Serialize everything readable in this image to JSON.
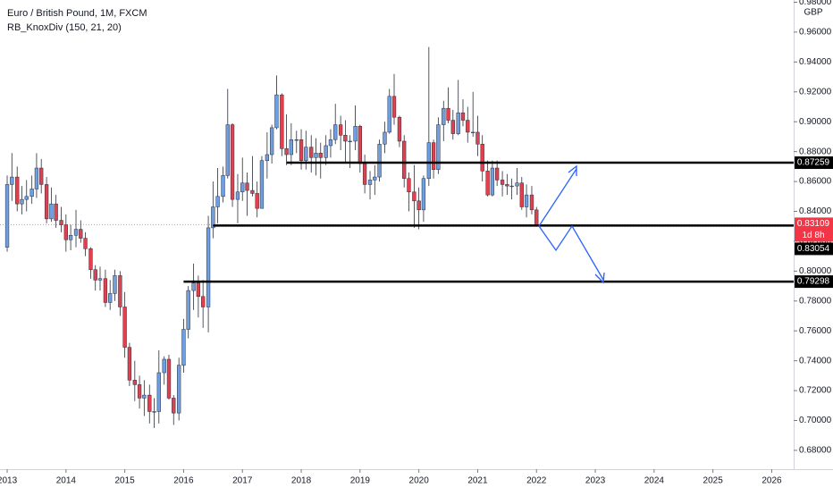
{
  "chart_data": {
    "type": "candlestick",
    "title": "Euro / British Pound, 1M, FXCM",
    "subtitle": "RB_KnoxDiv (150, 21, 20)",
    "currency": "GBP",
    "up_color": "#6f9fe0",
    "down_color": "#e0404f",
    "x": [
      2013,
      2013.08,
      2013.17,
      2013.25,
      2013.33,
      2013.42,
      2013.5,
      2013.58,
      2013.67,
      2013.75,
      2013.83,
      2013.92,
      2014,
      2014.08,
      2014.17,
      2014.25,
      2014.33,
      2014.42,
      2014.5,
      2014.58,
      2014.67,
      2014.75,
      2014.83,
      2014.92,
      2015,
      2015.08,
      2015.17,
      2015.25,
      2015.33,
      2015.42,
      2015.5,
      2015.58,
      2015.67,
      2015.75,
      2015.83,
      2015.92,
      2016,
      2016.08,
      2016.17,
      2016.25,
      2016.33,
      2016.42,
      2016.5,
      2016.58,
      2016.67,
      2016.75,
      2016.83,
      2016.92,
      2017,
      2017.08,
      2017.17,
      2017.25,
      2017.33,
      2017.42,
      2017.5,
      2017.58,
      2017.67,
      2017.75,
      2017.83,
      2017.92,
      2018,
      2018.08,
      2018.17,
      2018.25,
      2018.33,
      2018.42,
      2018.5,
      2018.58,
      2018.67,
      2018.75,
      2018.83,
      2018.92,
      2019,
      2019.08,
      2019.17,
      2019.25,
      2019.33,
      2019.42,
      2019.5,
      2019.58,
      2019.67,
      2019.75,
      2019.83,
      2019.92,
      2020,
      2020.08,
      2020.17,
      2020.25,
      2020.33,
      2020.42,
      2020.5,
      2020.58,
      2020.67,
      2020.75,
      2020.83,
      2020.92,
      2021,
      2021.08,
      2021.17,
      2021.25,
      2021.33,
      2021.42,
      2021.5,
      2021.58,
      2021.67,
      2021.75,
      2021.83,
      2021.92,
      2022
    ],
    "open": [
      0.816,
      0.858,
      0.863,
      0.845,
      0.848,
      0.85,
      0.855,
      0.869,
      0.858,
      0.835,
      0.845,
      0.834,
      0.831,
      0.821,
      0.824,
      0.828,
      0.822,
      0.815,
      0.801,
      0.794,
      0.795,
      0.779,
      0.785,
      0.797,
      0.776,
      0.749,
      0.727,
      0.724,
      0.715,
      0.717,
      0.706,
      0.706,
      0.732,
      0.741,
      0.715,
      0.705,
      0.737,
      0.761,
      0.787,
      0.792,
      0.783,
      0.776,
      0.829,
      0.843,
      0.85,
      0.864,
      0.898,
      0.848,
      0.853,
      0.859,
      0.854,
      0.852,
      0.842,
      0.874,
      0.878,
      0.896,
      0.918,
      0.882,
      0.878,
      0.888,
      0.888,
      0.874,
      0.883,
      0.876,
      0.879,
      0.876,
      0.884,
      0.888,
      0.898,
      0.891,
      0.887,
      0.887,
      0.897,
      0.872,
      0.858,
      0.861,
      0.863,
      0.885,
      0.893,
      0.917,
      0.903,
      0.887,
      0.862,
      0.853,
      0.847,
      0.841,
      0.862,
      0.886,
      0.868,
      0.898,
      0.909,
      0.901,
      0.892,
      0.906,
      0.901,
      0.893,
      0.893,
      0.885,
      0.867,
      0.851,
      0.869,
      0.861,
      0.858,
      0.857,
      0.857,
      0.859,
      0.843,
      0.851,
      0.841
    ],
    "high": [
      0.864,
      0.879,
      0.87,
      0.857,
      0.861,
      0.864,
      0.879,
      0.875,
      0.863,
      0.856,
      0.851,
      0.843,
      0.838,
      0.831,
      0.841,
      0.834,
      0.826,
      0.816,
      0.804,
      0.803,
      0.801,
      0.794,
      0.801,
      0.8,
      0.786,
      0.752,
      0.74,
      0.73,
      0.727,
      0.724,
      0.715,
      0.747,
      0.743,
      0.744,
      0.717,
      0.742,
      0.768,
      0.79,
      0.805,
      0.797,
      0.794,
      0.837,
      0.86,
      0.869,
      0.87,
      0.922,
      0.899,
      0.865,
      0.876,
      0.866,
      0.877,
      0.86,
      0.877,
      0.893,
      0.898,
      0.931,
      0.919,
      0.905,
      0.899,
      0.894,
      0.895,
      0.894,
      0.891,
      0.889,
      0.886,
      0.891,
      0.895,
      0.912,
      0.904,
      0.901,
      0.891,
      0.911,
      0.898,
      0.878,
      0.867,
      0.871,
      0.888,
      0.9,
      0.922,
      0.932,
      0.904,
      0.891,
      0.866,
      0.871,
      0.856,
      0.864,
      0.95,
      0.888,
      0.903,
      0.914,
      0.923,
      0.908,
      0.928,
      0.915,
      0.91,
      0.92,
      0.904,
      0.891,
      0.874,
      0.874,
      0.874,
      0.867,
      0.865,
      0.862,
      0.869,
      0.863,
      0.858,
      0.857,
      0.843
    ],
    "low": [
      0.813,
      0.847,
      0.84,
      0.838,
      0.84,
      0.845,
      0.849,
      0.852,
      0.832,
      0.833,
      0.829,
      0.826,
      0.813,
      0.814,
      0.816,
      0.819,
      0.81,
      0.795,
      0.787,
      0.787,
      0.776,
      0.774,
      0.78,
      0.77,
      0.742,
      0.723,
      0.713,
      0.708,
      0.703,
      0.698,
      0.695,
      0.698,
      0.724,
      0.714,
      0.697,
      0.7,
      0.732,
      0.755,
      0.774,
      0.769,
      0.762,
      0.759,
      0.822,
      0.832,
      0.846,
      0.862,
      0.843,
      0.832,
      0.847,
      0.837,
      0.85,
      0.836,
      0.842,
      0.862,
      0.872,
      0.895,
      0.877,
      0.871,
      0.871,
      0.879,
      0.868,
      0.868,
      0.866,
      0.864,
      0.862,
      0.871,
      0.876,
      0.885,
      0.881,
      0.872,
      0.869,
      0.881,
      0.866,
      0.852,
      0.848,
      0.851,
      0.86,
      0.879,
      0.892,
      0.898,
      0.883,
      0.856,
      0.84,
      0.829,
      0.828,
      0.833,
      0.857,
      0.862,
      0.865,
      0.887,
      0.899,
      0.888,
      0.891,
      0.897,
      0.886,
      0.89,
      0.877,
      0.86,
      0.85,
      0.85,
      0.857,
      0.85,
      0.851,
      0.848,
      0.851,
      0.841,
      0.836,
      0.838,
      0.83
    ],
    "close": [
      0.858,
      0.863,
      0.845,
      0.848,
      0.85,
      0.855,
      0.869,
      0.858,
      0.835,
      0.845,
      0.834,
      0.831,
      0.821,
      0.824,
      0.828,
      0.822,
      0.815,
      0.801,
      0.794,
      0.795,
      0.779,
      0.785,
      0.797,
      0.776,
      0.749,
      0.727,
      0.724,
      0.715,
      0.717,
      0.706,
      0.706,
      0.732,
      0.741,
      0.715,
      0.705,
      0.737,
      0.761,
      0.787,
      0.792,
      0.783,
      0.776,
      0.829,
      0.843,
      0.85,
      0.864,
      0.898,
      0.848,
      0.853,
      0.859,
      0.854,
      0.852,
      0.842,
      0.874,
      0.878,
      0.896,
      0.918,
      0.882,
      0.878,
      0.888,
      0.888,
      0.874,
      0.883,
      0.876,
      0.879,
      0.876,
      0.884,
      0.888,
      0.898,
      0.891,
      0.887,
      0.887,
      0.897,
      0.872,
      0.858,
      0.861,
      0.863,
      0.885,
      0.893,
      0.917,
      0.903,
      0.887,
      0.862,
      0.853,
      0.847,
      0.841,
      0.862,
      0.886,
      0.868,
      0.898,
      0.909,
      0.901,
      0.892,
      0.906,
      0.901,
      0.893,
      0.893,
      0.885,
      0.867,
      0.851,
      0.869,
      0.861,
      0.858,
      0.857,
      0.857,
      0.859,
      0.843,
      0.851,
      0.841,
      0.83109
    ],
    "xlim": [
      2012.878,
      2026.373
    ],
    "xticks": [
      2013,
      2014,
      2015,
      2016,
      2017,
      2018,
      2019,
      2020,
      2021,
      2022,
      2023,
      2024,
      2025,
      2026
    ],
    "ylim": [
      0.6674,
      0.9815
    ],
    "yticks": [
      {
        "value": 0.68,
        "label": "0.68000"
      },
      {
        "value": 0.7,
        "label": "0.70000"
      },
      {
        "value": 0.72,
        "label": "0.72000"
      },
      {
        "value": 0.74,
        "label": "0.74000"
      },
      {
        "value": 0.76,
        "label": "0.76000"
      },
      {
        "value": 0.78,
        "label": "0.78000"
      },
      {
        "value": 0.8,
        "label": "0.80000"
      },
      {
        "value": 0.82,
        "label": "0.82000"
      },
      {
        "value": 0.84,
        "label": "0.84000"
      },
      {
        "value": 0.86,
        "label": "0.86000"
      },
      {
        "value": 0.88,
        "label": "0.88000"
      },
      {
        "value": 0.9,
        "label": "0.90000"
      },
      {
        "value": 0.92,
        "label": "0.92000"
      },
      {
        "value": 0.94,
        "label": "0.94000"
      },
      {
        "value": 0.96,
        "label": "0.96000"
      },
      {
        "value": 0.98,
        "label": "0.98000"
      }
    ],
    "levels": [
      {
        "value": 0.87259,
        "start": 2017.75
      },
      {
        "value": 0.83054,
        "start": 2016.5
      },
      {
        "value": 0.79298,
        "start": 2016.0
      }
    ],
    "last_price": {
      "value": 0.83109,
      "countdown": "1d 8h",
      "color": "#f23645"
    }
  }
}
